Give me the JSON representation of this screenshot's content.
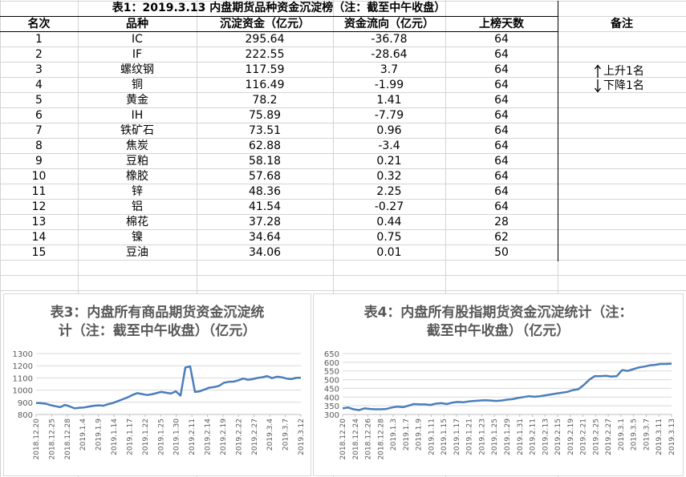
{
  "table": {
    "title": "表1：2019.3.13 内盘期货品种资金沉淀榜（注：截至中午收盘）",
    "headers": [
      "名次",
      "品种",
      "沉淀资金（亿元）",
      "资金流向（亿元）",
      "上榜天数",
      "备注"
    ],
    "rows": [
      [
        "1",
        "IC",
        "295.64",
        "-36.78",
        "64"
      ],
      [
        "2",
        "IF",
        "222.55",
        "-28.64",
        "64"
      ],
      [
        "3",
        "螺纹钢",
        "117.59",
        "3.7",
        "64"
      ],
      [
        "4",
        "铜",
        "116.49",
        "-1.99",
        "64"
      ],
      [
        "5",
        "黄金",
        "78.2",
        "1.41",
        "64"
      ],
      [
        "6",
        "IH",
        "75.89",
        "-7.79",
        "64"
      ],
      [
        "7",
        "铁矿石",
        "73.51",
        "0.96",
        "64"
      ],
      [
        "8",
        "焦炭",
        "62.88",
        "-3.4",
        "64"
      ],
      [
        "9",
        "豆粕",
        "58.18",
        "0.21",
        "64"
      ],
      [
        "10",
        "橡胶",
        "57.68",
        "0.32",
        "64"
      ],
      [
        "11",
        "锌",
        "48.36",
        "2.25",
        "64"
      ],
      [
        "12",
        "铝",
        "41.54",
        "-0.27",
        "64"
      ],
      [
        "13",
        "棉花",
        "37.28",
        "0.44",
        "28"
      ],
      [
        "14",
        "镍",
        "34.64",
        "0.75",
        "62"
      ],
      [
        "15",
        "豆油",
        "34.06",
        "0.01",
        "50"
      ]
    ],
    "notes": {
      "up": "上升1名",
      "down": "下降1名"
    }
  },
  "chart_data": [
    {
      "type": "line",
      "title_line1": "表3：内盘所有商品期货资金沉淀统",
      "title_line2": "计（注：截至中午收盘）（亿元）",
      "color": "#4a7ebb",
      "ylim": [
        800,
        1300
      ],
      "yticks": [
        "800",
        "900",
        "1000",
        "1100",
        "1200",
        "1300"
      ],
      "xticks": [
        "2018.12.20",
        "2018.12.25",
        "2018.12.28",
        "2019.1.4",
        "2019.1.9",
        "2019.1.14",
        "2019.1.17",
        "2019.1.22",
        "2019.1.25",
        "2019.1.30",
        "2019.2.11",
        "2019.2.14",
        "2019.2.19",
        "2019.2.22",
        "2019.2.27",
        "2019.3.4",
        "2019.3.7",
        "2019.3.12"
      ],
      "values": [
        895,
        893,
        888,
        876,
        868,
        860,
        878,
        866,
        850,
        855,
        858,
        865,
        872,
        875,
        872,
        885,
        895,
        910,
        925,
        940,
        960,
        975,
        968,
        960,
        965,
        975,
        985,
        978,
        972,
        990,
        955,
        1185,
        1195,
        985,
        990,
        1005,
        1020,
        1025,
        1035,
        1060,
        1068,
        1070,
        1080,
        1095,
        1085,
        1090,
        1100,
        1105,
        1115,
        1098,
        1110,
        1105,
        1095,
        1090,
        1100,
        1102
      ]
    },
    {
      "type": "line",
      "title_line1": "表4：内盘所有股指期货资金沉淀统计（注：",
      "title_line2": "截至中午收盘）（亿元）",
      "color": "#4a7ebb",
      "ylim": [
        300,
        650
      ],
      "yticks": [
        "300",
        "350",
        "400",
        "450",
        "500",
        "550",
        "600",
        "650"
      ],
      "xticks": [
        "2018.12.20",
        "2018.12.24",
        "2018.12.26",
        "2018.12.28",
        "2019.1.3",
        "2019.1.7",
        "2019.1.9",
        "2019.1.11",
        "2019.1.15",
        "2019.1.17",
        "2019.1.21",
        "2019.1.23",
        "2019.1.25",
        "2019.1.29",
        "2019.1.31",
        "2019.2.11",
        "2019.2.13",
        "2019.2.15",
        "2019.2.19",
        "2019.2.21",
        "2019.2.25",
        "2019.2.27",
        "2019.3.1",
        "2019.3.5",
        "2019.3.7",
        "2019.3.11",
        "2019.3.13"
      ],
      "values": [
        335,
        340,
        330,
        325,
        335,
        332,
        330,
        330,
        332,
        340,
        345,
        342,
        350,
        360,
        358,
        358,
        355,
        362,
        365,
        360,
        368,
        372,
        370,
        375,
        378,
        380,
        382,
        380,
        378,
        380,
        385,
        388,
        395,
        400,
        405,
        402,
        405,
        410,
        415,
        420,
        425,
        430,
        440,
        445,
        470,
        500,
        520,
        520,
        522,
        518,
        520,
        555,
        550,
        560,
        570,
        575,
        582,
        585,
        590,
        590,
        592
      ]
    }
  ]
}
